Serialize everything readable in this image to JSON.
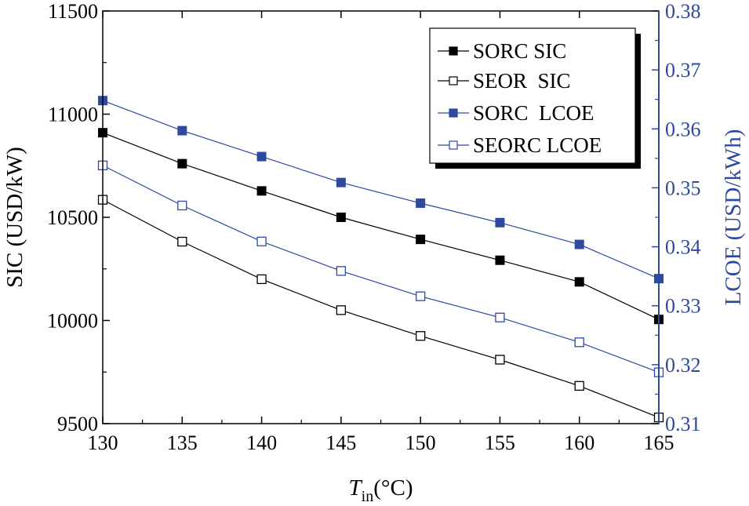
{
  "chart_data": {
    "type": "line",
    "x": [
      130,
      135,
      140,
      145,
      150,
      155,
      160,
      165
    ],
    "x_tick_labels": [
      "130",
      "135",
      "140",
      "145",
      "150",
      "155",
      "160",
      "165"
    ],
    "xlim": [
      130,
      165
    ],
    "xlabel_main": "T",
    "xlabel_sub": "in",
    "xlabel_unit": "(°C)",
    "y_left": {
      "label": "SIC (USD/kW)",
      "lim": [
        9500,
        11500
      ],
      "ticks": [
        "9500",
        "10000",
        "10500",
        "11000",
        "11500"
      ],
      "tick_values": [
        9500,
        10000,
        10500,
        11000,
        11500
      ],
      "color": "#000000"
    },
    "y_right": {
      "label": "LCOE (USD/kWh)",
      "lim": [
        0.31,
        0.38
      ],
      "ticks": [
        "0.31",
        "0.32",
        "0.33",
        "0.34",
        "0.35",
        "0.36",
        "0.37",
        "0.38"
      ],
      "tick_values": [
        0.31,
        0.32,
        0.33,
        0.34,
        0.35,
        0.36,
        0.37,
        0.38
      ],
      "color": "#2e4a9e"
    },
    "series": [
      {
        "name": "SORC SIC",
        "axis": "left",
        "color": "#000000",
        "filled": true,
        "values": [
          10910,
          10760,
          10628,
          10500,
          10393,
          10292,
          10187,
          10005
        ]
      },
      {
        "name": "SEOR  SIC",
        "axis": "left",
        "color": "#000000",
        "filled": false,
        "values": [
          10585,
          10382,
          10200,
          10050,
          9925,
          9810,
          9683,
          9530
        ]
      },
      {
        "name": "SORC  LCOE",
        "axis": "right",
        "color": "#2e4a9e",
        "filled": true,
        "values": [
          0.3648,
          0.3597,
          0.3553,
          0.3509,
          0.3474,
          0.3441,
          0.3404,
          0.3346
        ]
      },
      {
        "name": "SEORC LCOE",
        "axis": "right",
        "color": "#2e4a9e",
        "filled": false,
        "values": [
          0.3538,
          0.347,
          0.3409,
          0.3359,
          0.3316,
          0.328,
          0.3238,
          0.3187
        ]
      }
    ],
    "legend_position": "top-right"
  }
}
